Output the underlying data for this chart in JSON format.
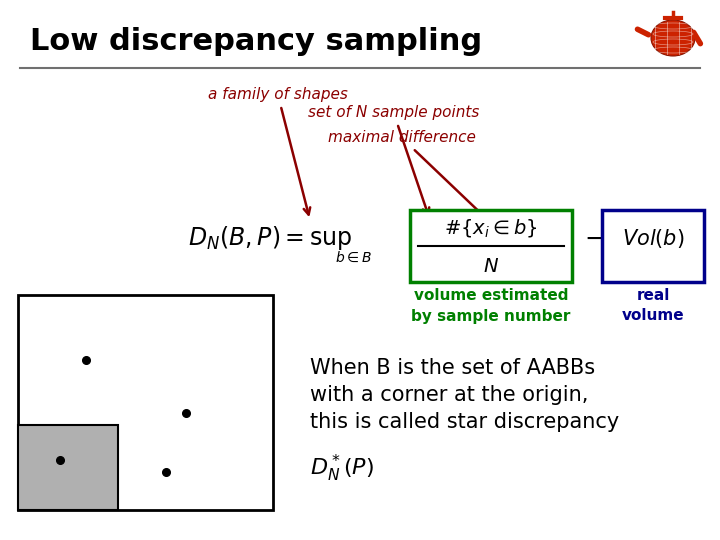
{
  "title": "Low discrepancy sampling",
  "bg_color": "#ffffff",
  "title_color": "#000000",
  "title_fontsize": 22,
  "arrow_color": "#8b0000",
  "green_box_color": "#008000",
  "blue_box_color": "#00008b",
  "green_text_color": "#008000",
  "blue_text_color": "#00008b",
  "black_text_color": "#000000",
  "gray_fill": "#b0b0b0",
  "sep_line_color": "#707070",
  "annotation_family": "a family of shapes",
  "annotation_sample": "set of N sample points",
  "annotation_maxdiff": "maximal difference",
  "label_vol_est": "volume estimated",
  "label_by_sample": "by sample number",
  "label_real": "real",
  "label_volume": "volume",
  "text_when_b": "When B is the set of AABBs",
  "text_corner": "with a corner at the origin,",
  "text_called": "this is called star discrepancy"
}
